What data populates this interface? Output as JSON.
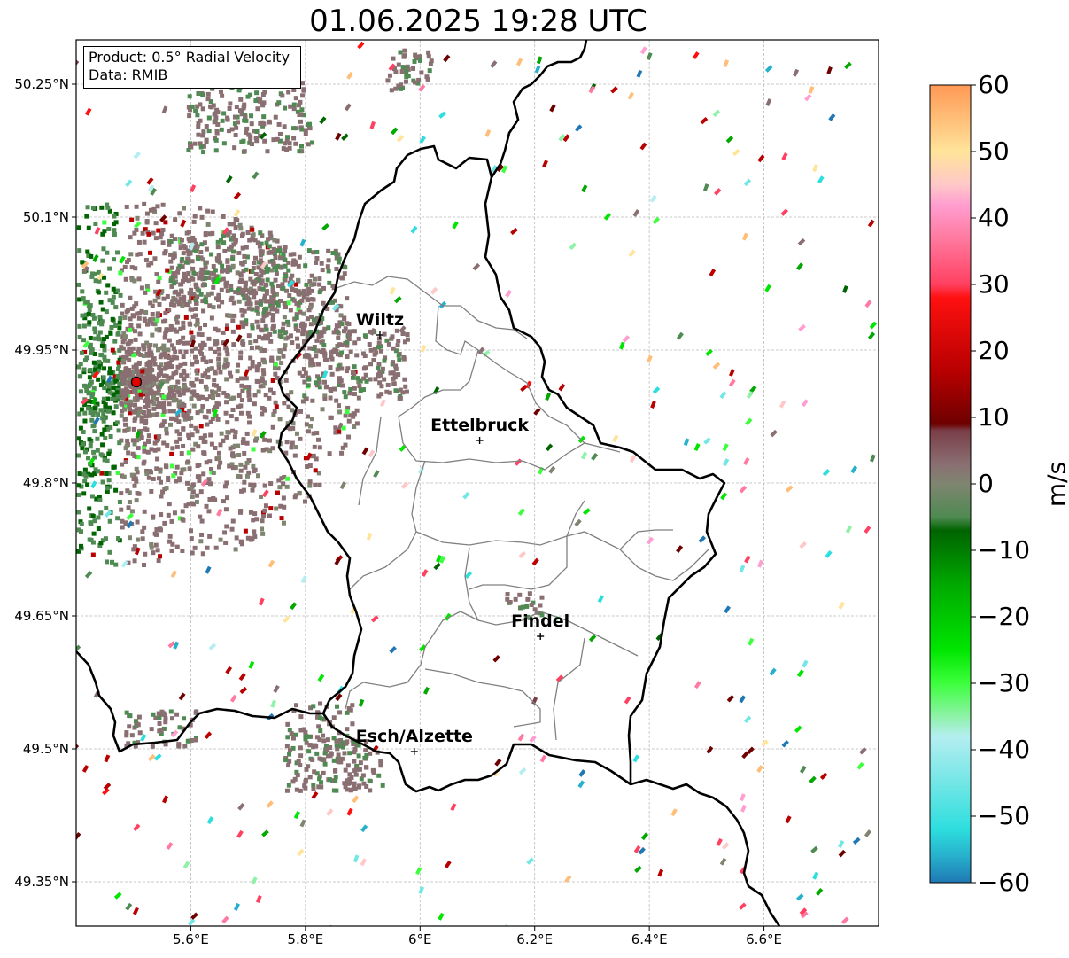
{
  "title": "01.06.2025 19:28 UTC",
  "infobox": {
    "product": "Product: 0.5° Radial Velocity",
    "source": "Data: RMIB"
  },
  "axes": {
    "lat_ticks": [
      "50.25°N",
      "50.1°N",
      "49.95°N",
      "49.8°N",
      "49.65°N",
      "49.5°N",
      "49.35°N"
    ],
    "lon_ticks": [
      "5.6°E",
      "5.8°E",
      "6°E",
      "6.2°E",
      "6.4°E",
      "6.6°E"
    ]
  },
  "cities": [
    {
      "name": "Wiltz",
      "lon": 5.93,
      "lat": 49.967
    },
    {
      "name": "Ettelbruck",
      "lon": 6.104,
      "lat": 49.848
    },
    {
      "name": "Findel",
      "lon": 6.21,
      "lat": 49.627
    },
    {
      "name": "Esch/Alzette",
      "lon": 5.99,
      "lat": 49.497
    }
  ],
  "radar_site": {
    "lon": 5.505,
    "lat": 49.914
  },
  "colorbar": {
    "label": "m/s",
    "ticks": [
      "60",
      "50",
      "40",
      "30",
      "20",
      "10",
      "0",
      "−10",
      "−20",
      "−30",
      "−40",
      "−50",
      "−60"
    ],
    "range": [
      -60,
      60
    ],
    "stops": [
      {
        "v": -60,
        "c": "#1f78b4"
      },
      {
        "v": -56,
        "c": "#27b0cc"
      },
      {
        "v": -52,
        "c": "#2ddede"
      },
      {
        "v": -45,
        "c": "#73e6e6"
      },
      {
        "v": -38,
        "c": "#b4eef0"
      },
      {
        "v": -35,
        "c": "#8ef2a8"
      },
      {
        "v": -30,
        "c": "#3dff3d"
      },
      {
        "v": -25,
        "c": "#00e600"
      },
      {
        "v": -15,
        "c": "#00a800"
      },
      {
        "v": -7,
        "c": "#006400"
      },
      {
        "v": -5,
        "c": "#4f8a52"
      },
      {
        "v": 0,
        "c": "#7f8570"
      },
      {
        "v": 3,
        "c": "#8a6f72"
      },
      {
        "v": 8,
        "c": "#7a3e48"
      },
      {
        "v": 9,
        "c": "#6e0000"
      },
      {
        "v": 17,
        "c": "#b80000"
      },
      {
        "v": 28,
        "c": "#ff1010"
      },
      {
        "v": 30,
        "c": "#ff4060"
      },
      {
        "v": 37,
        "c": "#ff7aa0"
      },
      {
        "v": 42,
        "c": "#ff9ed0"
      },
      {
        "v": 45,
        "c": "#ffc8c8"
      },
      {
        "v": 50,
        "c": "#ffe49a"
      },
      {
        "v": 55,
        "c": "#ffbe78"
      },
      {
        "v": 60,
        "c": "#ff9955"
      }
    ]
  },
  "extent": {
    "lon": [
      5.4,
      6.8
    ],
    "lat": [
      49.3,
      50.3
    ]
  },
  "colors": {
    "border": "#000000",
    "district": "#808080",
    "gridline": "#bbbbbb",
    "radar_marker": "#e00000"
  }
}
